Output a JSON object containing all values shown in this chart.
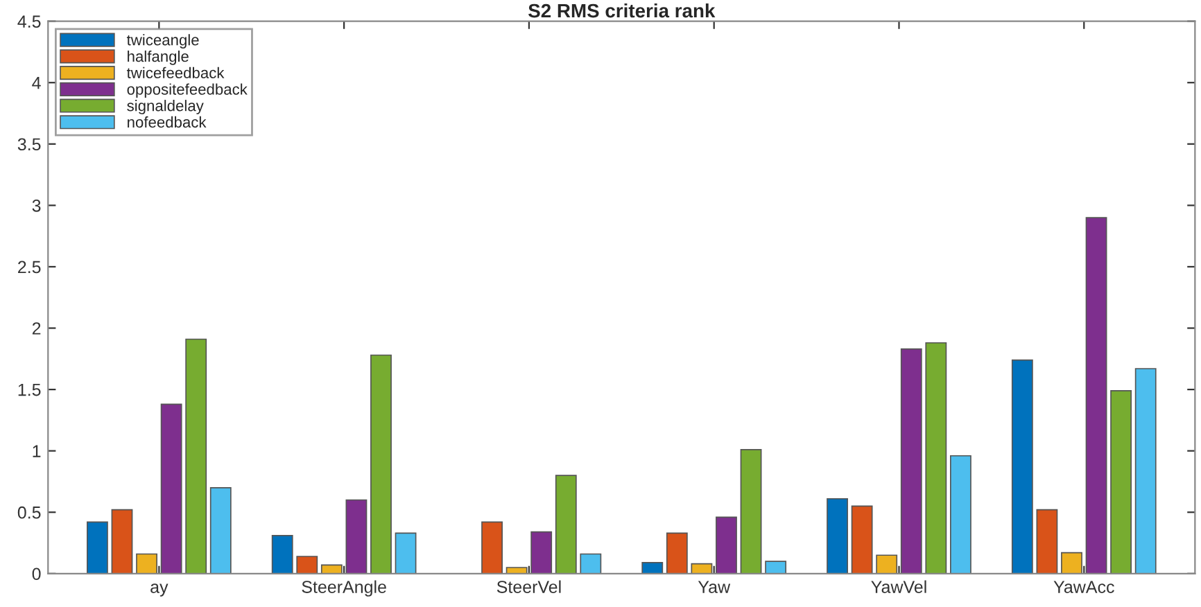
{
  "chart_data": {
    "type": "bar",
    "title": "S2 RMS criteria rank",
    "categories": [
      "ay",
      "SteerAngle",
      "SteerVel",
      "Yaw",
      "YawVel",
      "YawAcc"
    ],
    "series": [
      {
        "name": "twiceangle",
        "color": "#0072bd",
        "values": [
          0.42,
          0.31,
          null,
          0.09,
          0.61,
          1.74
        ]
      },
      {
        "name": "halfangle",
        "color": "#d95319",
        "values": [
          0.52,
          0.14,
          0.42,
          0.33,
          0.55,
          0.52
        ]
      },
      {
        "name": "twicefeedback",
        "color": "#edb120",
        "values": [
          0.16,
          0.07,
          0.05,
          0.08,
          0.15,
          0.17
        ]
      },
      {
        "name": "oppositefeedback",
        "color": "#7e2f8e",
        "values": [
          1.38,
          0.6,
          0.34,
          0.46,
          1.83,
          2.9
        ]
      },
      {
        "name": "signaldelay",
        "color": "#77ac30",
        "values": [
          1.91,
          1.78,
          0.8,
          1.01,
          1.88,
          1.49
        ]
      },
      {
        "name": "nofeedback",
        "color": "#4dbeee",
        "values": [
          0.7,
          0.33,
          0.16,
          0.1,
          0.96,
          1.67
        ]
      }
    ],
    "ylim": [
      0,
      4.5
    ],
    "yticks": [
      0,
      0.5,
      1,
      1.5,
      2,
      2.5,
      3,
      3.5,
      4,
      4.5
    ],
    "grid": false,
    "legend": "top left"
  }
}
